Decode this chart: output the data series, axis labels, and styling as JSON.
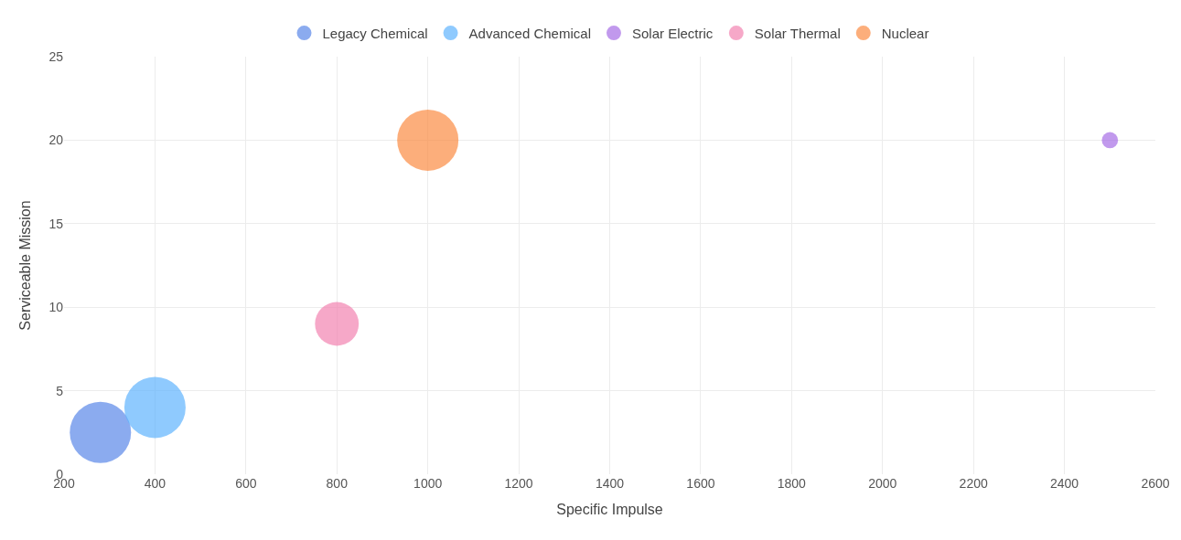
{
  "chart_data": {
    "type": "bubble",
    "xlabel": "Specific Impulse",
    "ylabel": "Serviceable Mission",
    "xlim": [
      200,
      2600
    ],
    "xticks": [
      200,
      400,
      600,
      800,
      1000,
      1200,
      1400,
      1600,
      1800,
      2000,
      2200,
      2400,
      2600
    ],
    "ylim": [
      0,
      25
    ],
    "yticks": [
      0,
      5,
      10,
      15,
      20,
      25
    ],
    "grid": true,
    "legend": "top",
    "series": [
      {
        "name": "Legacy Chemical",
        "color": "#5a88e8",
        "x": [
          280
        ],
        "values": [
          2.5
        ],
        "sizes": [
          1
        ]
      },
      {
        "name": "Advanced Chemical",
        "color": "#5fb3fd",
        "x": [
          400
        ],
        "values": [
          4
        ],
        "sizes": [
          1
        ]
      },
      {
        "name": "Solar Electric",
        "color": "#a66ee6",
        "x": [
          2500
        ],
        "values": [
          20
        ],
        "sizes": [
          0.07
        ]
      },
      {
        "name": "Solar Thermal",
        "color": "#f283b0",
        "x": [
          800
        ],
        "values": [
          9
        ],
        "sizes": [
          0.51
        ]
      },
      {
        "name": "Nuclear",
        "color": "#fb8c43",
        "x": [
          1000
        ],
        "values": [
          20
        ],
        "sizes": [
          1
        ]
      }
    ]
  }
}
